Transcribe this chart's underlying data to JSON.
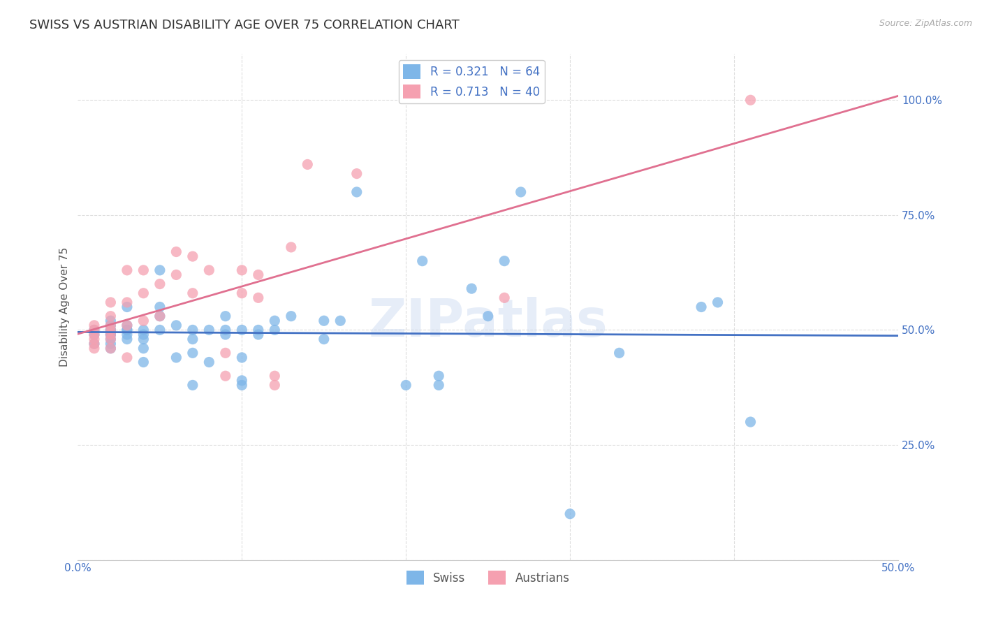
{
  "title": "SWISS VS AUSTRIAN DISABILITY AGE OVER 75 CORRELATION CHART",
  "source": "Source: ZipAtlas.com",
  "ylabel": "Disability Age Over 75",
  "xlim": [
    0.0,
    0.5
  ],
  "ylim": [
    0.0,
    110.0
  ],
  "ytick_vals": [
    0.0,
    25.0,
    50.0,
    75.0,
    100.0
  ],
  "ytick_labels": [
    "",
    "25.0%",
    "50.0%",
    "75.0%",
    "100.0%"
  ],
  "xtick_positions": [
    0.0,
    0.1,
    0.2,
    0.3,
    0.4,
    0.5
  ],
  "xtick_labels": [
    "0.0%",
    "",
    "",
    "",
    "",
    "50.0%"
  ],
  "swiss_color": "#7EB6E8",
  "austrian_color": "#F5A0B0",
  "swiss_line_color": "#4472C4",
  "austrian_line_color": "#E07090",
  "swiss_R": 0.321,
  "swiss_N": 64,
  "austrian_R": 0.713,
  "austrian_N": 40,
  "legend_label_swiss": "Swiss",
  "legend_label_austrians": "Austrians",
  "watermark": "ZIPatlas",
  "swiss_x": [
    0.01,
    0.01,
    0.01,
    0.02,
    0.02,
    0.02,
    0.02,
    0.02,
    0.02,
    0.02,
    0.02,
    0.02,
    0.03,
    0.03,
    0.03,
    0.03,
    0.03,
    0.03,
    0.04,
    0.04,
    0.04,
    0.04,
    0.04,
    0.05,
    0.05,
    0.05,
    0.05,
    0.06,
    0.06,
    0.07,
    0.07,
    0.07,
    0.07,
    0.08,
    0.08,
    0.09,
    0.09,
    0.09,
    0.1,
    0.1,
    0.1,
    0.1,
    0.11,
    0.11,
    0.12,
    0.12,
    0.13,
    0.15,
    0.15,
    0.16,
    0.17,
    0.2,
    0.21,
    0.22,
    0.22,
    0.24,
    0.25,
    0.26,
    0.27,
    0.3,
    0.33,
    0.38,
    0.39,
    0.41
  ],
  "swiss_y": [
    47,
    49,
    50,
    46,
    47,
    48,
    49,
    49,
    50,
    50,
    51,
    52,
    48,
    49,
    50,
    50,
    51,
    55,
    43,
    46,
    48,
    49,
    50,
    50,
    53,
    55,
    63,
    44,
    51,
    38,
    45,
    48,
    50,
    43,
    50,
    49,
    50,
    53,
    38,
    39,
    44,
    50,
    49,
    50,
    50,
    52,
    53,
    48,
    52,
    52,
    80,
    38,
    65,
    38,
    40,
    59,
    53,
    65,
    80,
    10,
    45,
    55,
    56,
    30
  ],
  "austrian_x": [
    0.01,
    0.01,
    0.01,
    0.01,
    0.01,
    0.01,
    0.02,
    0.02,
    0.02,
    0.02,
    0.02,
    0.02,
    0.02,
    0.03,
    0.03,
    0.03,
    0.03,
    0.04,
    0.04,
    0.04,
    0.05,
    0.05,
    0.06,
    0.06,
    0.07,
    0.07,
    0.08,
    0.09,
    0.09,
    0.1,
    0.1,
    0.11,
    0.11,
    0.12,
    0.12,
    0.13,
    0.14,
    0.17,
    0.26,
    0.41
  ],
  "austrian_y": [
    46,
    47,
    48,
    49,
    50,
    51,
    46,
    48,
    49,
    50,
    51,
    53,
    56,
    44,
    51,
    56,
    63,
    52,
    58,
    63,
    53,
    60,
    62,
    67,
    58,
    66,
    63,
    40,
    45,
    58,
    63,
    57,
    62,
    38,
    40,
    68,
    86,
    84,
    57,
    100
  ],
  "background_color": "#ffffff",
  "grid_color": "#dddddd",
  "axis_color": "#4472C4",
  "title_color": "#333333",
  "title_fontsize": 13,
  "label_fontsize": 11,
  "tick_fontsize": 11,
  "legend_fontsize": 12
}
